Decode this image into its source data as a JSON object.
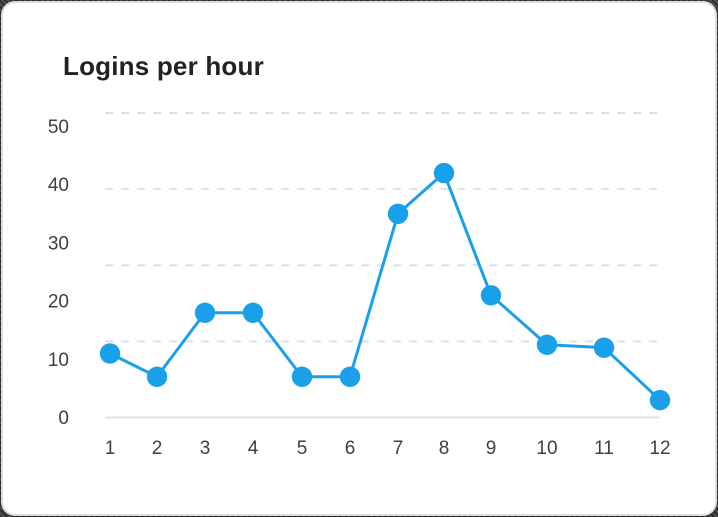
{
  "card": {
    "title": "Logins per hour"
  },
  "colors": {
    "line": "#1AA0E9",
    "point": "#1AA0E9",
    "gridline_dashed": "#D7E1EE",
    "baseline": "#DCE3EB",
    "title_text": "#202225",
    "tick_text": "#3C4043",
    "card_bg": "#FFFFFF",
    "card_border": "#D9DEE4"
  },
  "chart_data": {
    "type": "line",
    "title": "Logins per hour",
    "categories": [
      "1",
      "2",
      "3",
      "4",
      "5",
      "6",
      "7",
      "8",
      "9",
      "10",
      "11",
      "12"
    ],
    "values": [
      11,
      7,
      18,
      18,
      7,
      7,
      35,
      42,
      21,
      12.5,
      12,
      3
    ],
    "xlabel": "",
    "ylabel": "",
    "y_ticks": [
      0,
      10,
      20,
      30,
      40,
      50
    ],
    "ylim": [
      0,
      52.3
    ],
    "grid": "horizontal-dashed",
    "legend": "none",
    "markers": true,
    "marker_style": "filled-circle"
  }
}
